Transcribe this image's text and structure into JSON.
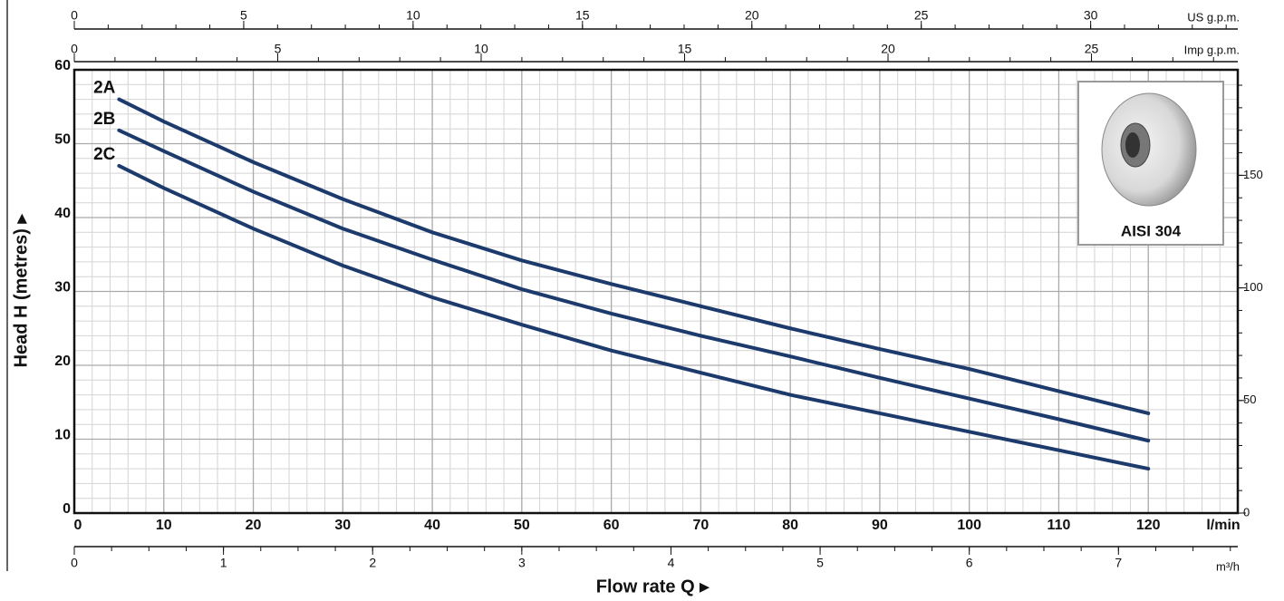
{
  "chart_data": {
    "type": "line",
    "y_label": "Head H (metres) ▸",
    "x_label": "Flow rate Q ▸",
    "x_unit": "l/min",
    "x": [
      5,
      10,
      20,
      30,
      40,
      50,
      60,
      70,
      80,
      90,
      100,
      110,
      120
    ],
    "series": [
      {
        "name": "2A",
        "color": "#1d3a6c",
        "values": [
          56,
          53,
          47.5,
          42.5,
          38,
          34.2,
          31,
          28,
          25,
          22.2,
          19.5,
          16.5,
          13.5
        ]
      },
      {
        "name": "2B",
        "color": "#1d3a6c",
        "values": [
          51.8,
          49,
          43.5,
          38.5,
          34.3,
          30.3,
          27,
          24,
          21.2,
          18.3,
          15.5,
          12.7,
          9.8
        ]
      },
      {
        "name": "2C",
        "color": "#1d3a6c",
        "values": [
          47,
          44,
          38.5,
          33.5,
          29.2,
          25.5,
          22,
          19,
          16,
          13.5,
          11,
          8.5,
          6
        ]
      }
    ],
    "xlim": [
      0,
      130
    ],
    "xticks": [
      0,
      10,
      20,
      30,
      40,
      50,
      60,
      70,
      80,
      90,
      100,
      110,
      120
    ],
    "ylim": [
      0,
      60
    ],
    "yticks": [
      0,
      10,
      20,
      30,
      40,
      50,
      60
    ],
    "y2lim": [
      0,
      196.85
    ],
    "y2ticks": [
      0,
      50,
      100,
      150
    ],
    "grid": true,
    "top_axes": [
      {
        "unit": "US g.p.m.",
        "lim": [
          0,
          34.343
        ],
        "ticks": [
          0,
          5,
          10,
          15,
          20,
          25,
          30
        ]
      },
      {
        "unit": "Imp g.p.m.",
        "lim": [
          0,
          28.596
        ],
        "ticks": [
          0,
          5,
          10,
          15,
          20,
          25
        ]
      }
    ],
    "bottom_axis": {
      "unit": "m³/h",
      "lim": [
        0,
        7.8
      ],
      "ticks": [
        0,
        1,
        2,
        3,
        4,
        5,
        6,
        7
      ]
    },
    "inset_label": "AISI 304"
  }
}
